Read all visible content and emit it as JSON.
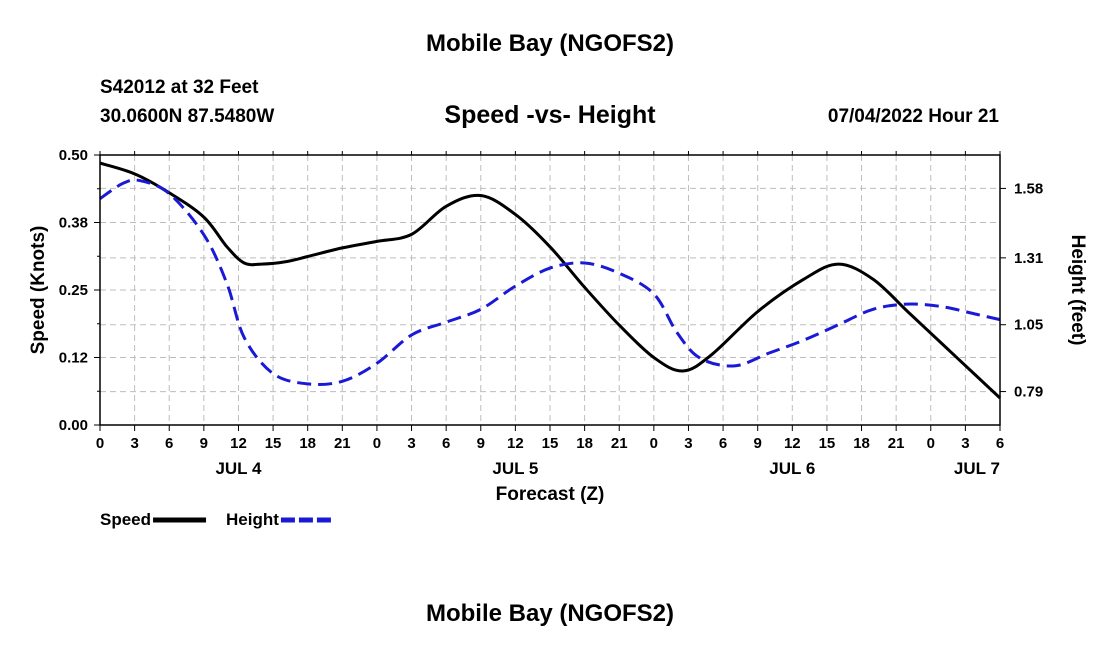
{
  "header": {
    "title": "Mobile Bay (NGOFS2)",
    "station": "S42012 at 32 Feet",
    "coordinates": "30.0600N  87.5480W",
    "subtitle": "Speed -vs- Height",
    "datetime": "07/04/2022 Hour 21"
  },
  "footer": {
    "title": "Mobile Bay (NGOFS2)"
  },
  "chart_data": {
    "type": "line",
    "title": "Speed -vs- Height",
    "xlabel": "Forecast (Z)",
    "ylabel": "Speed (Knots)",
    "y2label": "Height (feet)",
    "x_unit": "hours from Jul 4 00Z",
    "xlim": [
      0,
      78
    ],
    "ylim": [
      0,
      0.5
    ],
    "y2lim": [
      0.66,
      1.71
    ],
    "x_ticks": [
      0,
      3,
      6,
      9,
      12,
      15,
      18,
      21,
      24,
      27,
      30,
      33,
      36,
      39,
      42,
      45,
      48,
      51,
      54,
      57,
      60,
      63,
      66,
      69,
      72,
      75,
      78
    ],
    "x_tick_labels": [
      "0",
      "3",
      "6",
      "9",
      "12",
      "15",
      "18",
      "21",
      "0",
      "3",
      "6",
      "9",
      "12",
      "15",
      "18",
      "21",
      "0",
      "3",
      "6",
      "9",
      "12",
      "15",
      "18",
      "21",
      "0",
      "3",
      "6"
    ],
    "y_ticks": [
      0,
      0.125,
      0.25,
      0.375,
      0.5
    ],
    "y_tick_labels": [
      "0.00",
      "0.12",
      "0.25",
      "0.38",
      "0.50"
    ],
    "y2_ticks": [
      0.79,
      1.05,
      1.31,
      1.58
    ],
    "y2_tick_labels": [
      "0.79",
      "1.05",
      "1.31",
      "1.58"
    ],
    "day_labels": [
      {
        "x": 12,
        "label": "JUL 4"
      },
      {
        "x": 36,
        "label": "JUL 5"
      },
      {
        "x": 60,
        "label": "JUL 6"
      },
      {
        "x": 76,
        "label": "JUL 7"
      }
    ],
    "grid": true,
    "series": [
      {
        "name": "Speed",
        "axis": "left",
        "color": "#000000",
        "dash": "solid",
        "points": [
          [
            0,
            0.485
          ],
          [
            3,
            0.465
          ],
          [
            6,
            0.43
          ],
          [
            9,
            0.385
          ],
          [
            11,
            0.33
          ],
          [
            12.5,
            0.3
          ],
          [
            14,
            0.298
          ],
          [
            16,
            0.302
          ],
          [
            18,
            0.312
          ],
          [
            21,
            0.328
          ],
          [
            24,
            0.34
          ],
          [
            27,
            0.353
          ],
          [
            30,
            0.405
          ],
          [
            33,
            0.425
          ],
          [
            36,
            0.39
          ],
          [
            39,
            0.33
          ],
          [
            42,
            0.255
          ],
          [
            45,
            0.185
          ],
          [
            48,
            0.125
          ],
          [
            50.5,
            0.1
          ],
          [
            53,
            0.13
          ],
          [
            57,
            0.21
          ],
          [
            61,
            0.27
          ],
          [
            64,
            0.298
          ],
          [
            67,
            0.27
          ],
          [
            70,
            0.21
          ],
          [
            73,
            0.15
          ],
          [
            76,
            0.09
          ],
          [
            78,
            0.05
          ]
        ]
      },
      {
        "name": "Height",
        "axis": "right",
        "color": "#1a1ad6",
        "dash": "dashed",
        "points": [
          [
            0,
            1.54
          ],
          [
            2,
            1.6
          ],
          [
            3.5,
            1.61
          ],
          [
            6,
            1.56
          ],
          [
            9,
            1.4
          ],
          [
            11,
            1.21
          ],
          [
            12.5,
            1.0
          ],
          [
            15,
            0.86
          ],
          [
            18,
            0.82
          ],
          [
            21,
            0.83
          ],
          [
            24,
            0.9
          ],
          [
            27,
            1.01
          ],
          [
            30,
            1.06
          ],
          [
            33,
            1.11
          ],
          [
            36,
            1.2
          ],
          [
            39,
            1.27
          ],
          [
            42,
            1.29
          ],
          [
            45,
            1.25
          ],
          [
            48,
            1.17
          ],
          [
            50,
            1.02
          ],
          [
            52,
            0.92
          ],
          [
            55,
            0.89
          ],
          [
            58,
            0.94
          ],
          [
            61,
            0.99
          ],
          [
            64,
            1.05
          ],
          [
            67,
            1.11
          ],
          [
            70,
            1.13
          ],
          [
            73,
            1.12
          ],
          [
            76,
            1.09
          ],
          [
            78,
            1.07
          ]
        ]
      }
    ],
    "legend": {
      "position": "bottom-left",
      "entries": [
        "Speed",
        "Height"
      ]
    }
  }
}
